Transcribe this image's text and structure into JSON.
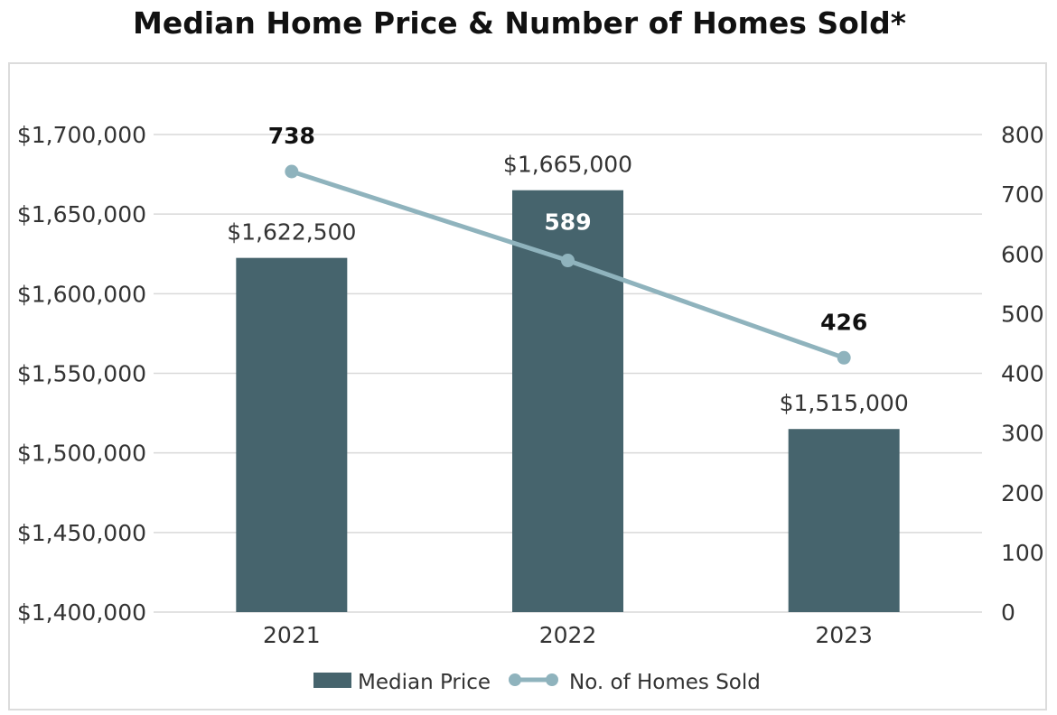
{
  "title": "Median Home Price & Number of Homes Sold*",
  "colors": {
    "bar": "#46646d",
    "line": "#8fb3bd",
    "grid": "#d9d9d9",
    "count_label_dark": "#111111",
    "count_label_light": "#ffffff"
  },
  "chart_data": {
    "type": "bar",
    "title": "Median Home Price & Number of Homes Sold*",
    "categories": [
      "2021",
      "2022",
      "2023"
    ],
    "series": [
      {
        "name": "Median Price",
        "type": "bar",
        "axis": "left",
        "values": [
          1622500,
          1665000,
          1515000
        ],
        "labels": [
          "$1,622,500",
          "$1,665,000",
          "$1,515,000"
        ]
      },
      {
        "name": "No. of Homes Sold",
        "type": "line",
        "axis": "right",
        "values": [
          738,
          589,
          426
        ],
        "labels": [
          "738",
          "589",
          "426"
        ]
      }
    ],
    "y_left": {
      "range": [
        1400000,
        1700000
      ],
      "ticks": [
        1700000,
        1650000,
        1600000,
        1550000,
        1500000,
        1450000,
        1400000
      ],
      "tick_labels": [
        "$1,700,000",
        "$1,650,000",
        "$1,600,000",
        "$1,550,000",
        "$1,500,000",
        "$1,450,000",
        "$1,400,000"
      ]
    },
    "y_right": {
      "range": [
        0,
        800
      ],
      "ticks": [
        800,
        700,
        600,
        500,
        400,
        300,
        200,
        100,
        0
      ],
      "tick_labels": [
        "800",
        "700",
        "600",
        "500",
        "400",
        "300",
        "200",
        "100",
        "0"
      ]
    },
    "grid": true,
    "legend": {
      "position": "bottom",
      "entries": [
        "Median Price",
        "No. of Homes Sold"
      ]
    }
  }
}
